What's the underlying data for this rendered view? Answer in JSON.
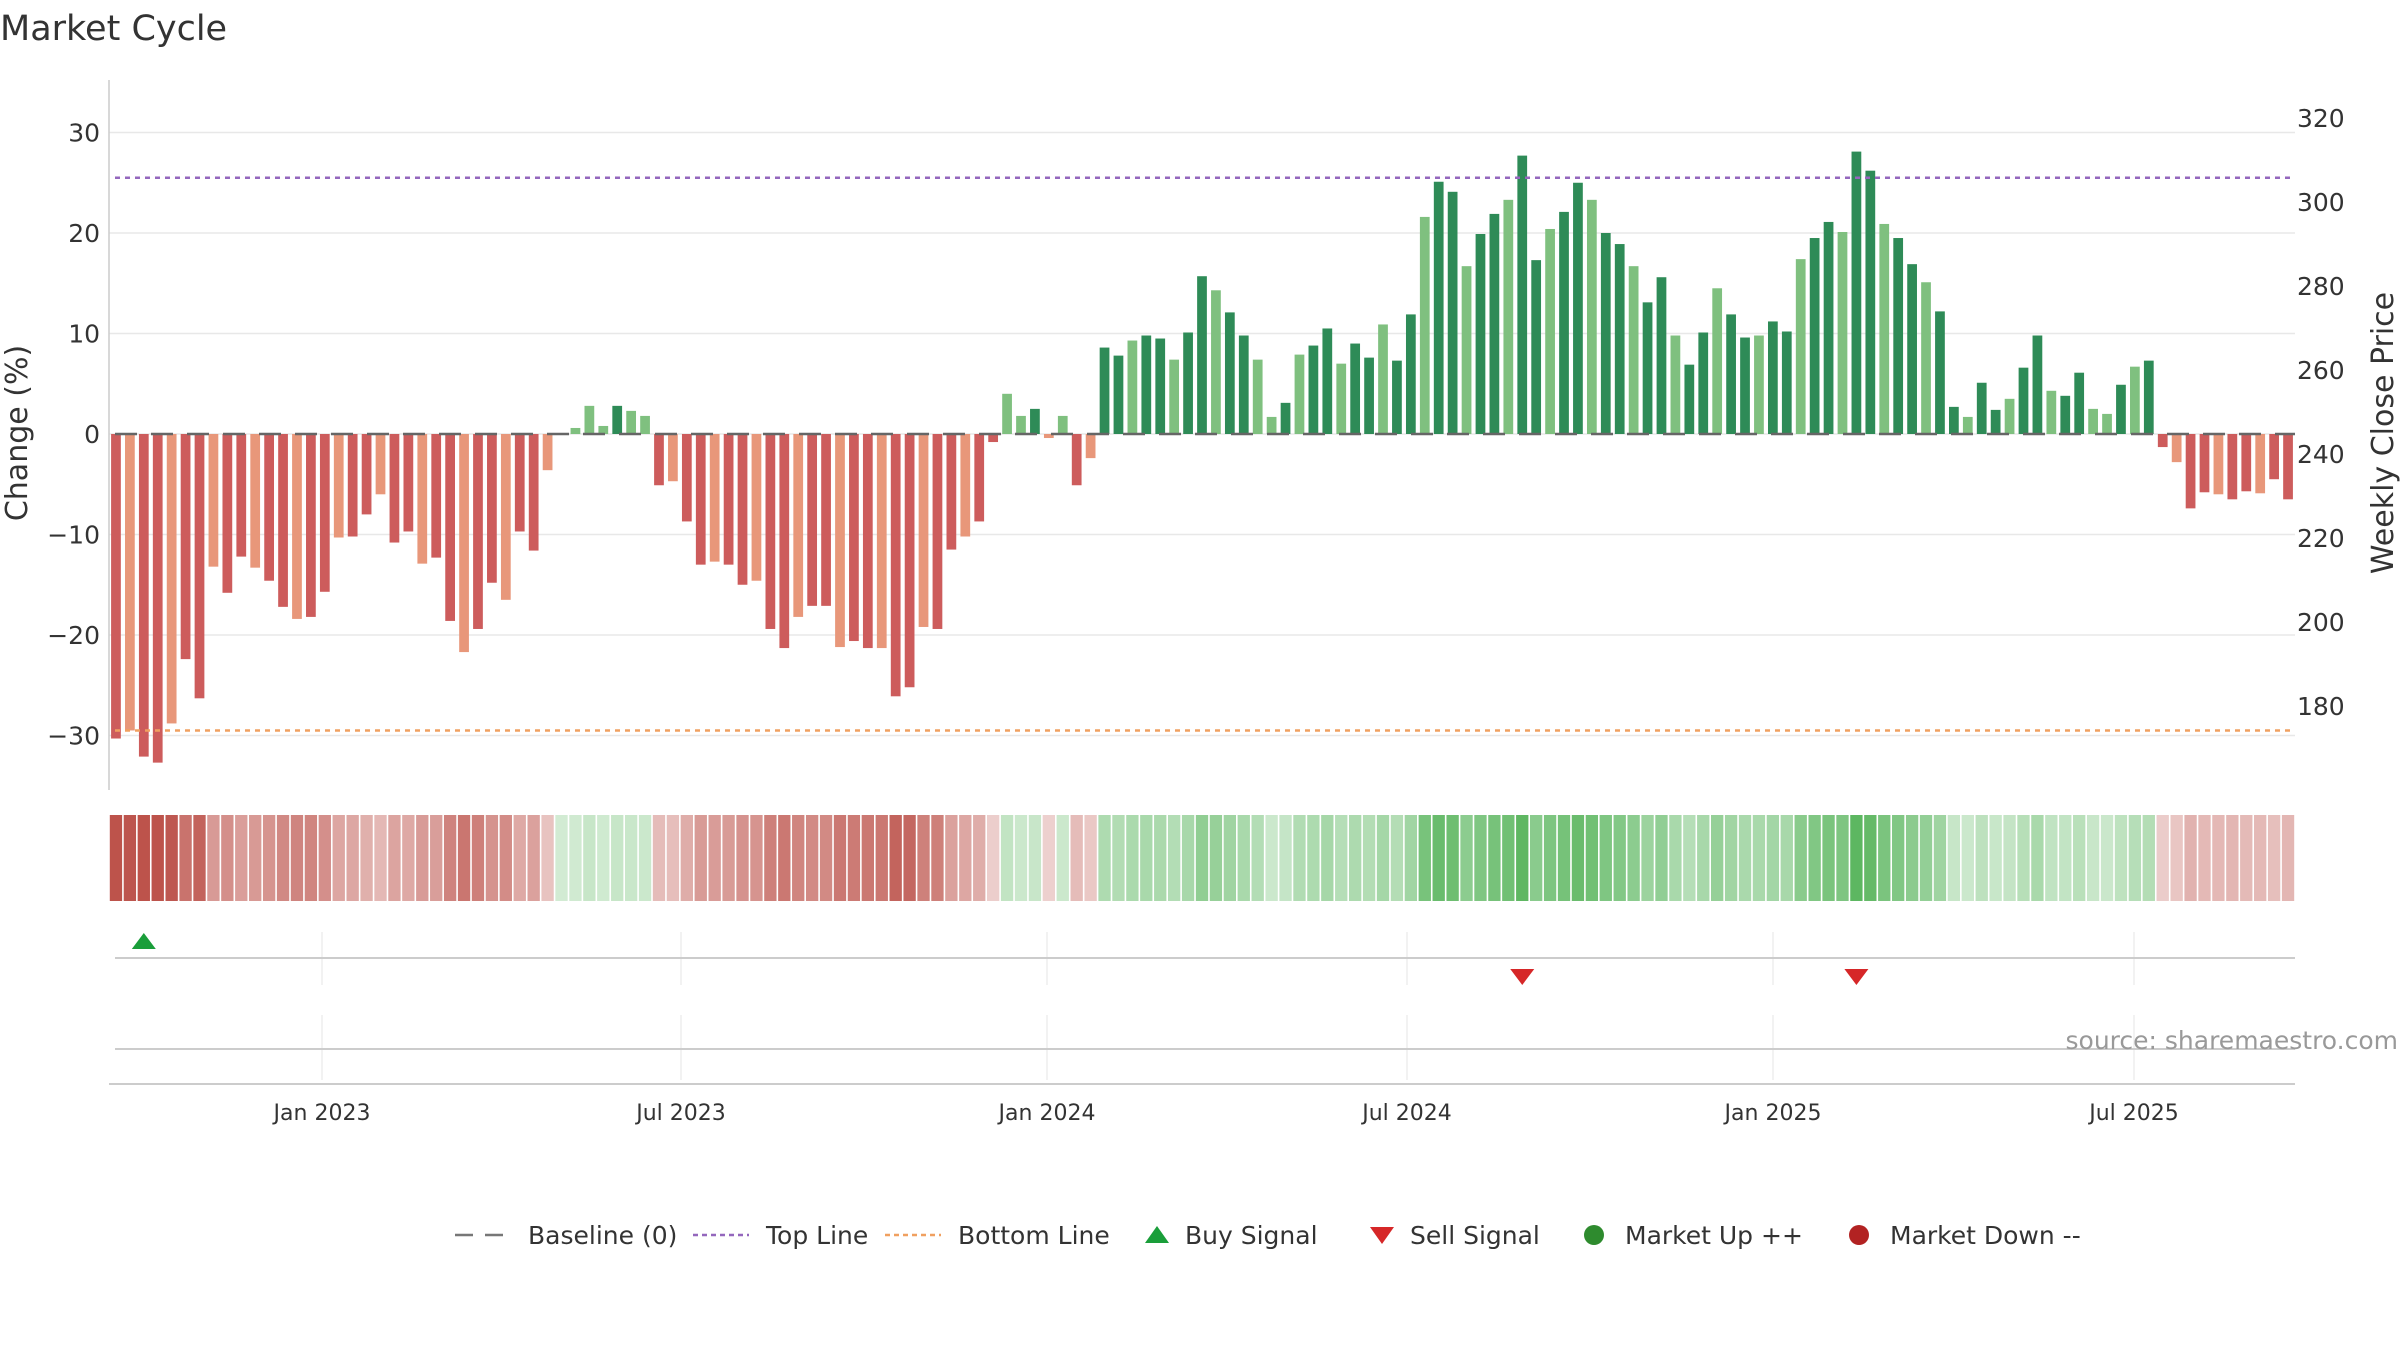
{
  "chart_data": {
    "type": "bar",
    "title": "Market Cycle",
    "ylabel": "Change (%)",
    "y2label": "Weekly Close Price",
    "ylim": [
      -35,
      35
    ],
    "y2lim": [
      167,
      324
    ],
    "yticks": [
      "30",
      "20",
      "10",
      "0",
      "−10",
      "−20",
      "−30"
    ],
    "y2ticks": [
      "320",
      "300",
      "280",
      "260",
      "240",
      "220",
      "200",
      "180"
    ],
    "xticks": [
      "Jan 2023",
      "Jul 2023",
      "Jan 2024",
      "Jul 2024",
      "Jan 2025",
      "Jul 2025"
    ],
    "top_line": 25.5,
    "bottom_line": -29.5,
    "baseline": 0,
    "grid": true,
    "legend_position": "bottom",
    "source": "source: sharemaestro.com",
    "values": [
      -30.3,
      -29.5,
      -32.1,
      -32.7,
      -28.8,
      -22.4,
      -26.3,
      -13.2,
      -15.8,
      -12.2,
      -13.3,
      -14.6,
      -17.2,
      -18.4,
      -18.2,
      -15.7,
      -10.3,
      -10.2,
      -8.0,
      -6.0,
      -10.8,
      -9.7,
      -12.9,
      -12.3,
      -18.6,
      -21.7,
      -19.4,
      -14.8,
      -16.5,
      -9.7,
      -11.6,
      -3.6,
      0.1,
      0.6,
      2.8,
      0.8,
      2.8,
      2.3,
      1.8,
      -5.1,
      -4.7,
      -8.7,
      -13.0,
      -12.7,
      -13.0,
      -15.0,
      -14.6,
      -19.4,
      -21.3,
      -18.2,
      -17.1,
      -17.1,
      -21.2,
      -20.6,
      -21.3,
      -21.3,
      -26.1,
      -25.2,
      -19.2,
      -19.4,
      -11.5,
      -10.2,
      -8.7,
      -0.8,
      4.0,
      1.8,
      2.5,
      -0.4,
      1.8,
      -5.1,
      -2.4,
      8.6,
      7.8,
      9.3,
      9.8,
      9.5,
      7.4,
      10.1,
      15.7,
      14.3,
      12.1,
      9.8,
      7.4,
      1.7,
      3.1,
      7.9,
      8.8,
      10.5,
      7.0,
      9.0,
      7.6,
      10.9,
      7.3,
      11.9,
      21.6,
      25.1,
      24.1,
      16.7,
      19.9,
      21.9,
      23.3,
      27.7,
      17.3,
      20.4,
      22.1,
      25.0,
      23.3,
      20.0,
      18.9,
      16.7,
      13.1,
      15.6,
      9.8,
      6.9,
      10.1,
      14.5,
      11.9,
      9.6,
      9.8,
      11.2,
      10.2,
      17.4,
      19.5,
      21.1,
      20.1,
      28.1,
      26.2,
      20.9,
      19.5,
      16.9,
      15.1,
      12.2,
      2.7,
      1.7,
      5.1,
      2.4,
      3.5,
      6.6,
      9.8,
      4.3,
      3.8,
      6.1,
      2.5,
      2.0,
      4.9,
      6.7,
      7.3,
      -1.3,
      -2.8,
      -7.4,
      -5.8,
      -6.0,
      -6.5,
      -5.7,
      -5.9,
      -4.5,
      -6.5
    ],
    "buy_signals": [
      2
    ],
    "sell_signals": [
      101,
      125
    ],
    "series_legend": [
      {
        "name": "Baseline (0)",
        "symbol": "dash",
        "color": "#777777"
      },
      {
        "name": "Top Line",
        "symbol": "dot",
        "color": "#9467bd"
      },
      {
        "name": "Bottom Line",
        "symbol": "dot",
        "color": "#f0a060"
      },
      {
        "name": "Buy Signal",
        "symbol": "triangle-up",
        "color": "#1a9e3a"
      },
      {
        "name": "Sell Signal",
        "symbol": "triangle-down",
        "color": "#d62728"
      },
      {
        "name": "Market Up ++",
        "symbol": "circle",
        "color": "#2e8b2e"
      },
      {
        "name": "Market Down --",
        "symbol": "circle",
        "color": "#b22222"
      }
    ],
    "colors": {
      "neg_strong": "#cd5c5c",
      "neg_weak": "#e8977a",
      "pos_strong": "#2e8b57",
      "pos_weak": "#7fc07f",
      "grid": "#e8e8e8",
      "axis": "#cccccc"
    }
  }
}
